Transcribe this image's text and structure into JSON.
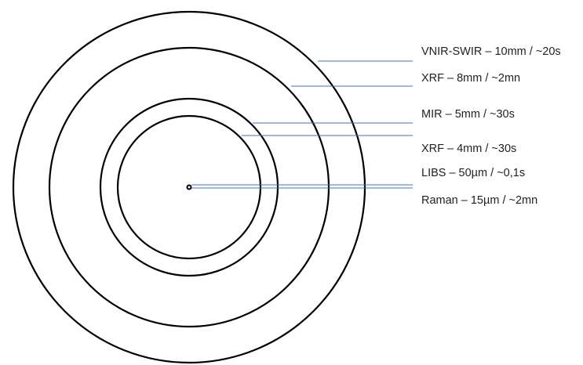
{
  "diagram": {
    "line_color": "#4472C4",
    "ring_color": "#000000",
    "labels": {
      "vnir_swir": "VNIR-SWIR – 10mm / ~20s",
      "xrf_8mm": "XRF – 8mm / ~2mn",
      "mir": "MIR – 5mm / ~30s",
      "xrf_4mm": "XRF – 4mm / ~30s",
      "libs": "LIBS – 50µm / ~0,1s",
      "raman": "Raman – 15µm / ~2mn"
    }
  }
}
